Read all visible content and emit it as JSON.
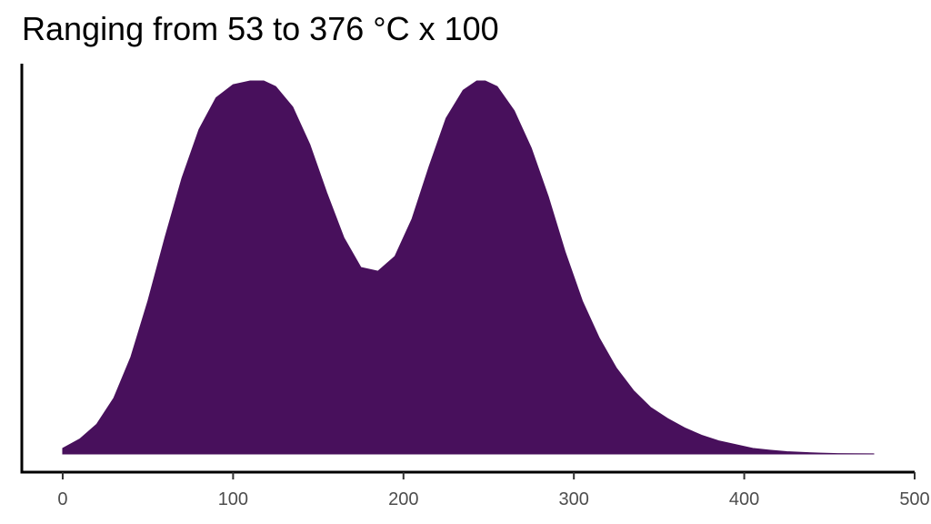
{
  "chart_data": {
    "type": "area",
    "title": "Ranging from 53 to 376 °C x 100",
    "xlabel": "",
    "ylabel": "",
    "xlim": [
      -24,
      500
    ],
    "ylim": [
      0,
      1
    ],
    "x_ticks": [
      0,
      100,
      200,
      300,
      400,
      500
    ],
    "x_tick_labels": [
      "0",
      "100",
      "200",
      "300",
      "400",
      "500"
    ],
    "y_ticks": [],
    "grid": false,
    "legend": "none",
    "fill_color": "#48105c",
    "series": [
      {
        "x": [
          0,
          10,
          20,
          30,
          40,
          50,
          60,
          70,
          80,
          90,
          100,
          110,
          118,
          125,
          135,
          145,
          155,
          165,
          175,
          185,
          195,
          205,
          215,
          225,
          235,
          243,
          248,
          255,
          265,
          275,
          285,
          295,
          305,
          315,
          325,
          335,
          345,
          355,
          365,
          375,
          385,
          395,
          405,
          415,
          425,
          435,
          445,
          455,
          465,
          476
        ],
        "y": [
          0.015,
          0.04,
          0.08,
          0.15,
          0.26,
          0.41,
          0.58,
          0.74,
          0.87,
          0.955,
          0.99,
          1.0,
          1.0,
          0.985,
          0.93,
          0.83,
          0.7,
          0.58,
          0.5,
          0.49,
          0.53,
          0.63,
          0.77,
          0.9,
          0.975,
          1.0,
          1.0,
          0.985,
          0.92,
          0.82,
          0.69,
          0.54,
          0.41,
          0.31,
          0.23,
          0.17,
          0.125,
          0.095,
          0.07,
          0.05,
          0.035,
          0.025,
          0.015,
          0.01,
          0.006,
          0.004,
          0.002,
          0.001,
          0.0005,
          0.0002
        ]
      }
    ]
  }
}
